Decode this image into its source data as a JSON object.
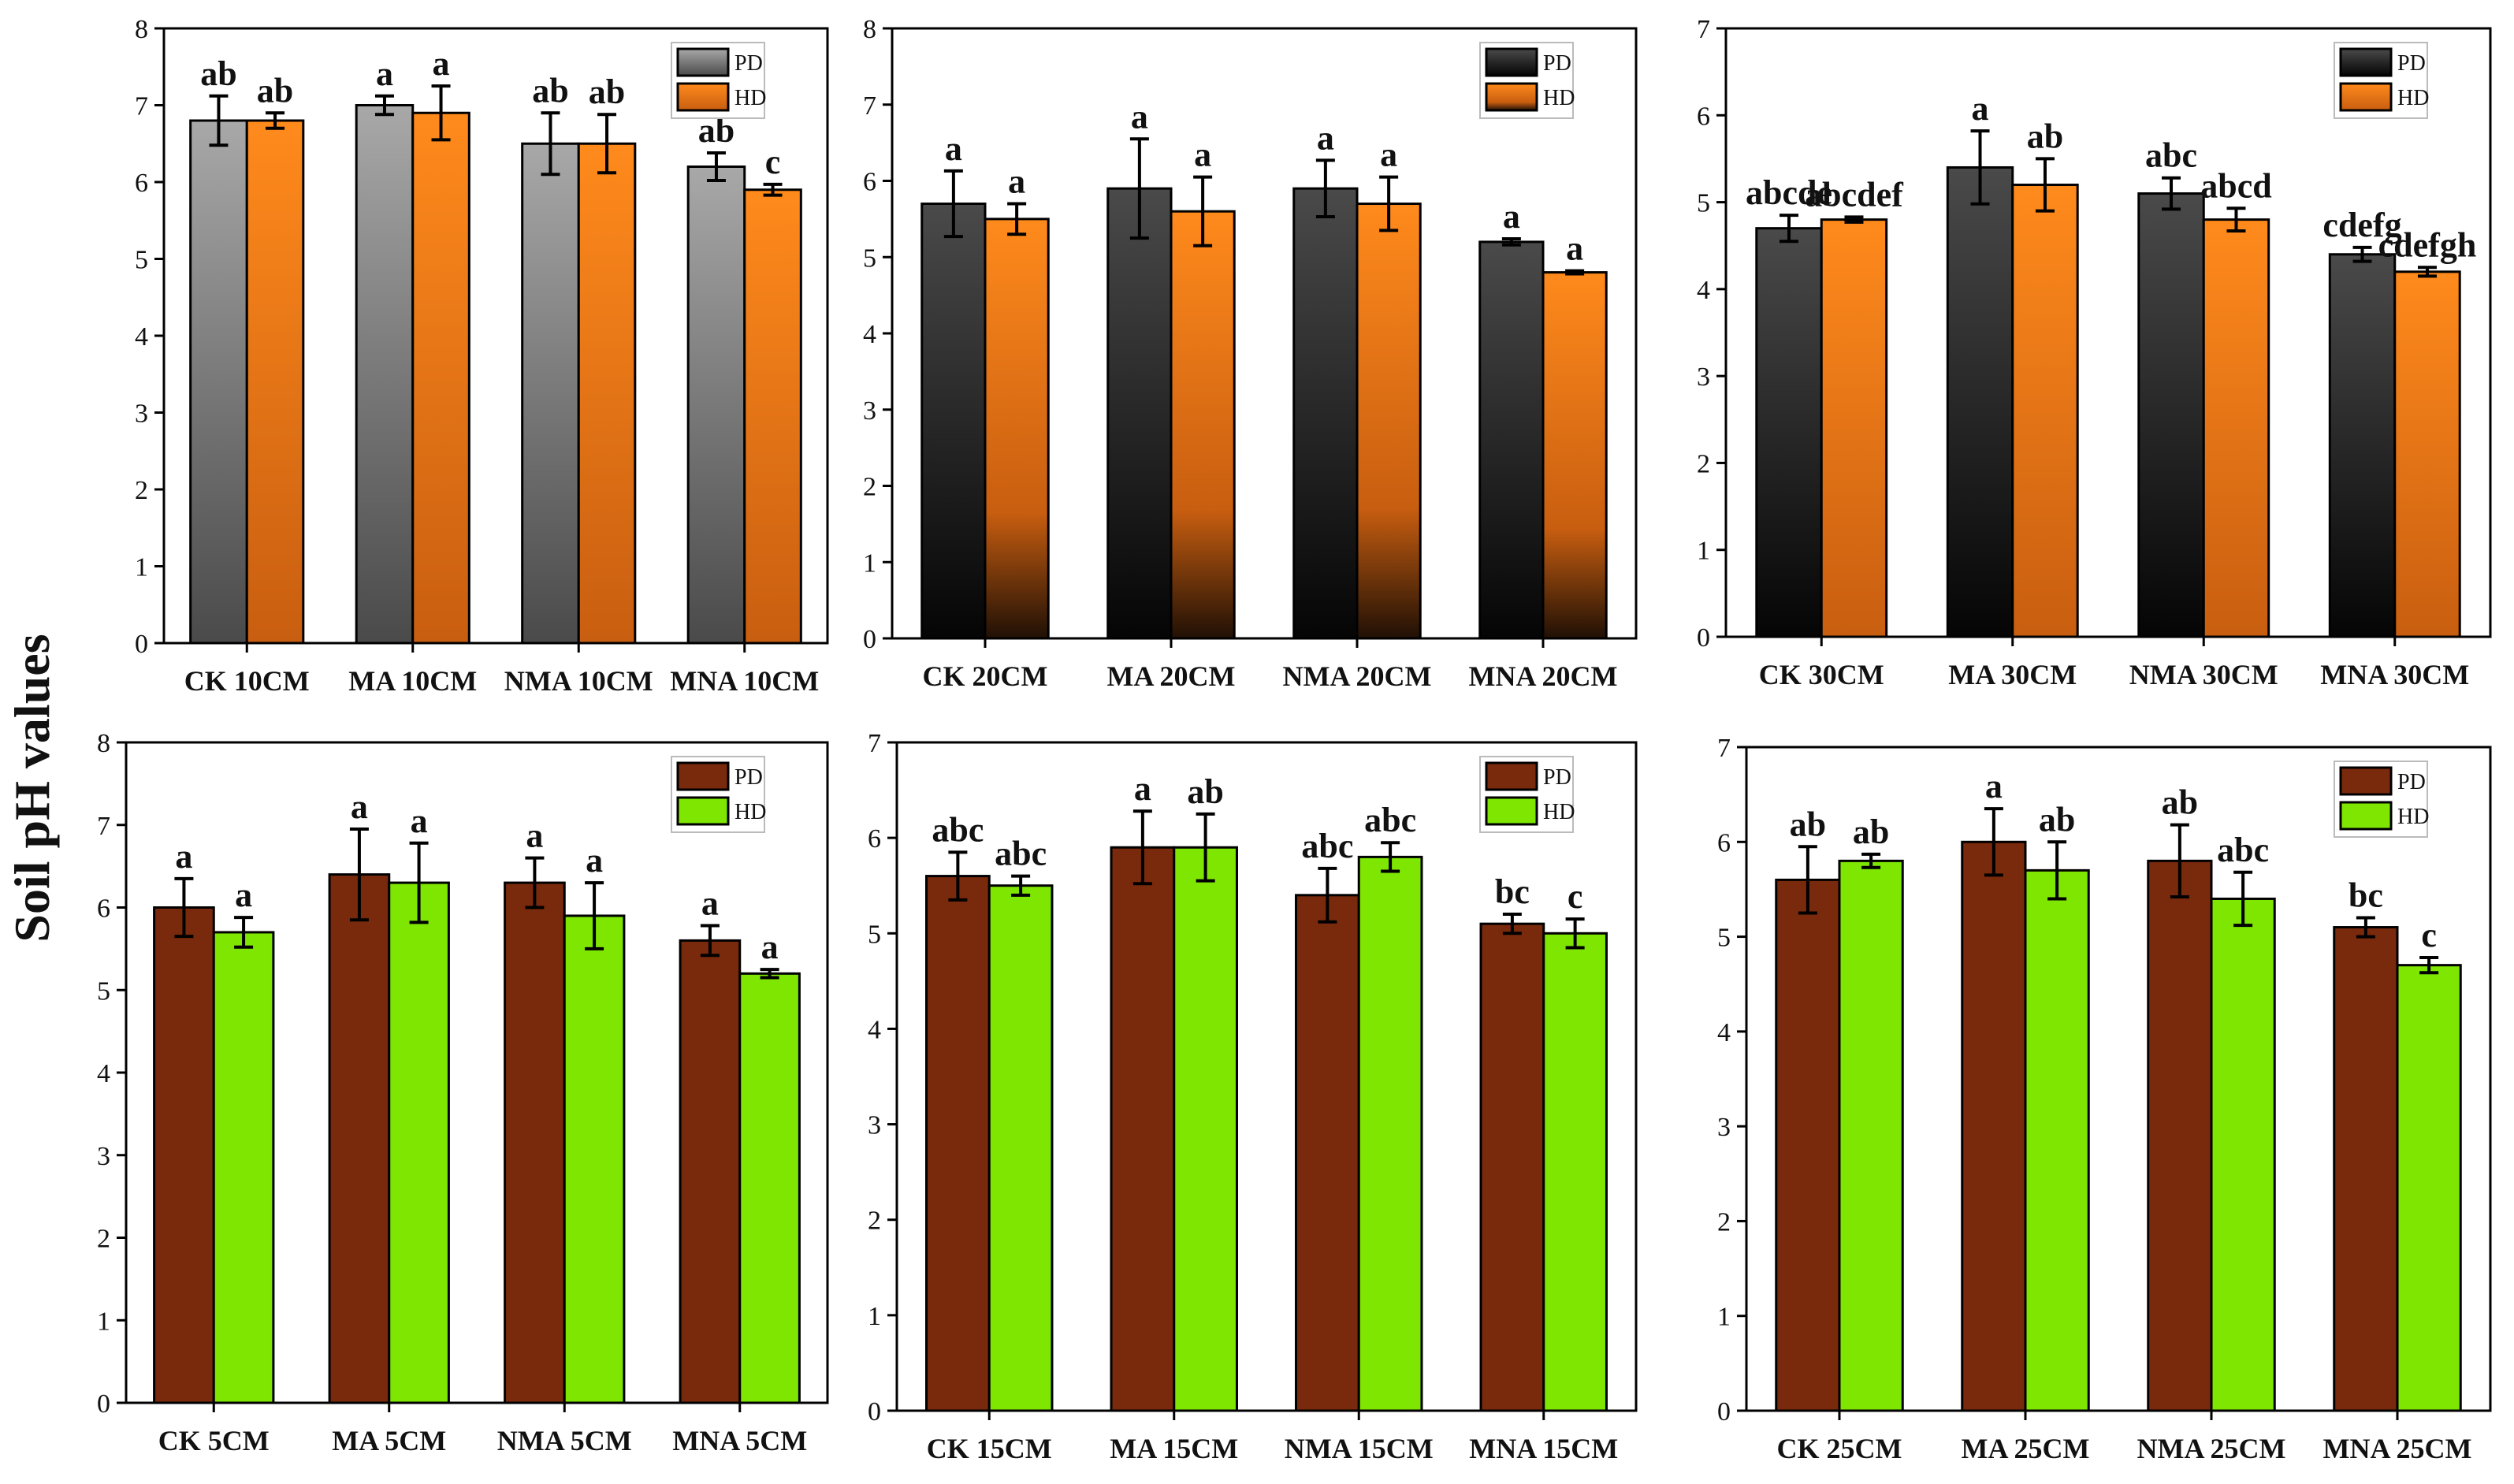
{
  "figure": {
    "ylabel": "Soil pH values"
  },
  "colors": {
    "gray_top": "#a8a8a8",
    "gray_bottom": "#4a4a4a",
    "dark_top": "#4a4a4a",
    "dark_bottom": "#050505",
    "orange_top": "#ff8a1c",
    "orange_bottom": "#c85e10",
    "orange_fade_bottom": "#201005",
    "brown": "#7a2a0c",
    "green": "#7ee600"
  },
  "chart_data": [
    {
      "type": "bar",
      "id": "p10",
      "title": "",
      "xlabel": "",
      "ylabel": "Soil pH values",
      "ylim": [
        0,
        8
      ],
      "yticks": [
        "0",
        "1",
        "2",
        "3",
        "4",
        "5",
        "6",
        "7",
        "8"
      ],
      "categories": [
        "CK 10CM",
        "MA 10CM",
        "NMA 10CM",
        "MNA 10CM"
      ],
      "legend_position": "top-right",
      "series": [
        {
          "name": "PD",
          "style": "gray",
          "values": [
            6.8,
            7.0,
            6.5,
            6.2
          ],
          "errors": [
            0.32,
            0.12,
            0.4,
            0.18
          ],
          "labels": [
            "ab",
            "a",
            "ab",
            "ab"
          ]
        },
        {
          "name": "HD",
          "style": "orange",
          "values": [
            6.8,
            6.9,
            6.5,
            5.9
          ],
          "errors": [
            0.1,
            0.35,
            0.38,
            0.07
          ],
          "labels": [
            "ab",
            "a",
            "ab",
            "c"
          ]
        }
      ]
    },
    {
      "type": "bar",
      "id": "p20",
      "title": "",
      "xlabel": "",
      "ylabel": "",
      "ylim": [
        0,
        8
      ],
      "yticks": [
        "0",
        "1",
        "2",
        "3",
        "4",
        "5",
        "6",
        "7",
        "8"
      ],
      "categories": [
        "CK 20CM",
        "MA 20CM",
        "NMA 20CM",
        "MNA 20CM"
      ],
      "legend_position": "top-right",
      "series": [
        {
          "name": "PD",
          "style": "dark",
          "values": [
            5.7,
            5.9,
            5.9,
            5.2
          ],
          "errors": [
            0.43,
            0.65,
            0.37,
            0.04
          ],
          "labels": [
            "a",
            "a",
            "a",
            "a"
          ]
        },
        {
          "name": "HD",
          "style": "orangefade",
          "values": [
            5.5,
            5.6,
            5.7,
            4.8
          ],
          "errors": [
            0.2,
            0.45,
            0.35,
            0.02
          ],
          "labels": [
            "a",
            "a",
            "a",
            "a"
          ]
        }
      ]
    },
    {
      "type": "bar",
      "id": "p30",
      "title": "",
      "xlabel": "",
      "ylabel": "",
      "ylim": [
        0,
        7
      ],
      "yticks": [
        "0",
        "1",
        "2",
        "3",
        "4",
        "5",
        "6",
        "7"
      ],
      "categories": [
        "CK 30CM",
        "MA 30CM",
        "NMA 30CM",
        "MNA 30CM"
      ],
      "legend_position": "top-right",
      "series": [
        {
          "name": "PD",
          "style": "dark",
          "values": [
            4.7,
            5.4,
            5.1,
            4.4
          ],
          "errors": [
            0.15,
            0.42,
            0.18,
            0.08
          ],
          "labels": [
            "abcde",
            "a",
            "abc",
            "cdefg"
          ]
        },
        {
          "name": "HD",
          "style": "orange",
          "values": [
            4.8,
            5.2,
            4.8,
            4.2
          ],
          "errors": [
            0.03,
            0.3,
            0.13,
            0.05
          ],
          "labels": [
            "abcdef",
            "ab",
            "abcd",
            "cdefgh"
          ]
        }
      ]
    },
    {
      "type": "bar",
      "id": "p5",
      "title": "",
      "xlabel": "",
      "ylabel": "Soil pH values",
      "ylim": [
        0,
        8
      ],
      "yticks": [
        "0",
        "1",
        "2",
        "3",
        "4",
        "5",
        "6",
        "7",
        "8"
      ],
      "categories": [
        "CK 5CM",
        "MA 5CM",
        "NMA 5CM",
        "MNA 5CM"
      ],
      "legend_position": "top-right",
      "series": [
        {
          "name": "PD",
          "style": "brown",
          "values": [
            6.0,
            6.4,
            6.3,
            5.6
          ],
          "errors": [
            0.35,
            0.55,
            0.3,
            0.18
          ],
          "labels": [
            "a",
            "a",
            "a",
            "a"
          ]
        },
        {
          "name": "HD",
          "style": "green",
          "values": [
            5.7,
            6.3,
            5.9,
            5.2
          ],
          "errors": [
            0.18,
            0.48,
            0.4,
            0.05
          ],
          "labels": [
            "a",
            "a",
            "a",
            "a"
          ]
        }
      ]
    },
    {
      "type": "bar",
      "id": "p15",
      "title": "",
      "xlabel": "",
      "ylabel": "",
      "ylim": [
        0,
        7
      ],
      "yticks": [
        "0",
        "1",
        "2",
        "3",
        "4",
        "5",
        "6",
        "7"
      ],
      "categories": [
        "CK 15CM",
        "MA 15CM",
        "NMA 15CM",
        "MNA 15CM"
      ],
      "legend_position": "top-right",
      "series": [
        {
          "name": "PD",
          "style": "brown",
          "values": [
            5.6,
            5.9,
            5.4,
            5.1
          ],
          "errors": [
            0.25,
            0.38,
            0.28,
            0.1
          ],
          "labels": [
            "abc",
            "a",
            "abc",
            "bc"
          ]
        },
        {
          "name": "HD",
          "style": "green",
          "values": [
            5.5,
            5.9,
            5.8,
            5.0
          ],
          "errors": [
            0.1,
            0.35,
            0.15,
            0.15
          ],
          "labels": [
            "abc",
            "ab",
            "abc",
            "c"
          ]
        }
      ]
    },
    {
      "type": "bar",
      "id": "p25",
      "title": "",
      "xlabel": "",
      "ylabel": "",
      "ylim": [
        0,
        7
      ],
      "yticks": [
        "0",
        "1",
        "2",
        "3",
        "4",
        "5",
        "6",
        "7"
      ],
      "categories": [
        "CK 25CM",
        "MA 25CM",
        "NMA 25CM",
        "MNA 25CM"
      ],
      "legend_position": "top-right",
      "series": [
        {
          "name": "PD",
          "style": "brown",
          "values": [
            5.6,
            6.0,
            5.8,
            5.1
          ],
          "errors": [
            0.35,
            0.35,
            0.38,
            0.1
          ],
          "labels": [
            "ab",
            "a",
            "ab",
            "bc"
          ]
        },
        {
          "name": "HD",
          "style": "green",
          "values": [
            5.8,
            5.7,
            5.4,
            4.7
          ],
          "errors": [
            0.07,
            0.3,
            0.28,
            0.08
          ],
          "labels": [
            "ab",
            "ab",
            "abc",
            "c"
          ]
        }
      ]
    }
  ]
}
